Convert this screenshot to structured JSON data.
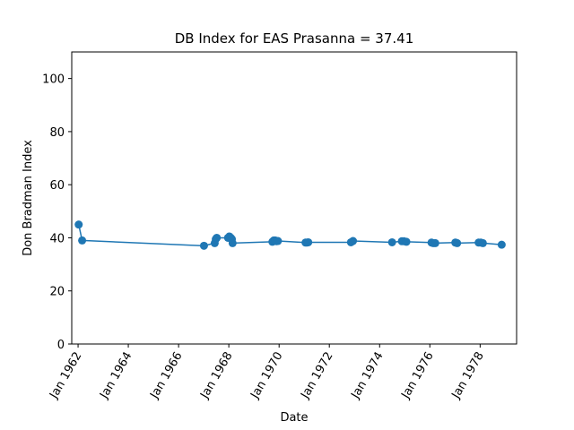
{
  "chart_data": {
    "type": "line",
    "title": "DB Index for EAS Prasanna = 37.41",
    "xlabel": "Date",
    "ylabel": "Don Bradman Index",
    "ylim": [
      0,
      110
    ],
    "xlim": [
      "1961-10-01",
      "1979-06-15"
    ],
    "yticks": [
      0,
      20,
      40,
      60,
      80,
      100
    ],
    "xticks": [
      {
        "date": "1962-01-01",
        "label": "Jan 1962"
      },
      {
        "date": "1964-01-01",
        "label": "Jan 1964"
      },
      {
        "date": "1966-01-01",
        "label": "Jan 1966"
      },
      {
        "date": "1968-01-01",
        "label": "Jan 1968"
      },
      {
        "date": "1970-01-01",
        "label": "Jan 1970"
      },
      {
        "date": "1972-01-01",
        "label": "Jan 1972"
      },
      {
        "date": "1974-01-01",
        "label": "Jan 1974"
      },
      {
        "date": "1976-01-01",
        "label": "Jan 1976"
      },
      {
        "date": "1978-01-01",
        "label": "Jan 1978"
      }
    ],
    "grid": false,
    "color": "#1f77b4",
    "series": [
      {
        "points": [
          {
            "x": "1962-01-10",
            "y": 45.0
          },
          {
            "x": "1962-03-01",
            "y": 39.0
          },
          {
            "x": "1967-01-05",
            "y": 37.0
          },
          {
            "x": "1967-06-10",
            "y": 38.0
          },
          {
            "x": "1967-06-25",
            "y": 39.5
          },
          {
            "x": "1967-07-10",
            "y": 40.0
          },
          {
            "x": "1967-12-20",
            "y": 40.0
          },
          {
            "x": "1968-01-10",
            "y": 40.5
          },
          {
            "x": "1968-01-30",
            "y": 40.0
          },
          {
            "x": "1968-02-15",
            "y": 39.5
          },
          {
            "x": "1968-02-25",
            "y": 38.0
          },
          {
            "x": "1969-09-25",
            "y": 38.5
          },
          {
            "x": "1969-10-15",
            "y": 39.0
          },
          {
            "x": "1969-11-05",
            "y": 39.0
          },
          {
            "x": "1969-11-25",
            "y": 38.7
          },
          {
            "x": "1969-12-15",
            "y": 38.8
          },
          {
            "x": "1971-01-20",
            "y": 38.2
          },
          {
            "x": "1971-02-10",
            "y": 38.2
          },
          {
            "x": "1971-03-01",
            "y": 38.3
          },
          {
            "x": "1972-11-10",
            "y": 38.3
          },
          {
            "x": "1972-12-10",
            "y": 38.8
          },
          {
            "x": "1974-07-01",
            "y": 38.3
          },
          {
            "x": "1974-11-20",
            "y": 38.7
          },
          {
            "x": "1974-12-20",
            "y": 38.7
          },
          {
            "x": "1975-01-25",
            "y": 38.5
          },
          {
            "x": "1976-01-25",
            "y": 38.2
          },
          {
            "x": "1976-02-20",
            "y": 38.0
          },
          {
            "x": "1976-03-20",
            "y": 38.0
          },
          {
            "x": "1977-01-05",
            "y": 38.2
          },
          {
            "x": "1977-02-01",
            "y": 38.0
          },
          {
            "x": "1977-12-10",
            "y": 38.2
          },
          {
            "x": "1978-01-10",
            "y": 38.2
          },
          {
            "x": "1978-02-10",
            "y": 38.0
          },
          {
            "x": "1978-11-10",
            "y": 37.4
          }
        ]
      }
    ]
  }
}
